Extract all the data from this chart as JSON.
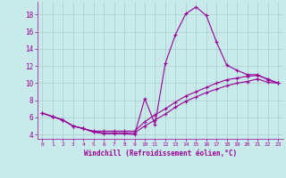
{
  "xlabel": "Windchill (Refroidissement éolien,°C)",
  "bg_color": "#c8eaea",
  "grid_color": "#aacccc",
  "line_color": "#990099",
  "xlim": [
    -0.5,
    23.5
  ],
  "ylim": [
    3.5,
    19.5
  ],
  "yticks": [
    4,
    6,
    8,
    10,
    12,
    14,
    16,
    18
  ],
  "xticks": [
    0,
    1,
    2,
    3,
    4,
    5,
    6,
    7,
    8,
    9,
    10,
    11,
    12,
    13,
    14,
    15,
    16,
    17,
    18,
    19,
    20,
    21,
    22,
    23
  ],
  "line1_x": [
    0,
    1,
    2,
    3,
    4,
    5,
    6,
    7,
    8,
    9,
    10,
    11,
    12,
    13,
    14,
    15,
    16,
    17,
    18,
    19,
    20,
    21,
    22,
    23
  ],
  "line1_y": [
    6.5,
    6.1,
    5.7,
    5.0,
    4.7,
    4.3,
    4.1,
    4.1,
    4.1,
    4.0,
    8.2,
    5.2,
    12.3,
    15.7,
    18.1,
    18.9,
    17.9,
    14.8,
    12.1,
    11.5,
    11.0,
    11.0,
    10.4,
    10.0
  ],
  "line2_x": [
    0,
    1,
    2,
    3,
    4,
    5,
    6,
    7,
    8,
    9,
    10,
    11,
    12,
    13,
    14,
    15,
    16,
    17,
    18,
    19,
    20,
    21,
    22,
    23
  ],
  "line2_y": [
    6.5,
    6.1,
    5.7,
    5.0,
    4.7,
    4.4,
    4.4,
    4.4,
    4.4,
    4.4,
    5.5,
    6.3,
    7.0,
    7.8,
    8.5,
    9.0,
    9.5,
    10.0,
    10.4,
    10.6,
    10.8,
    10.9,
    10.5,
    10.0
  ],
  "line3_x": [
    0,
    1,
    2,
    3,
    4,
    5,
    6,
    7,
    8,
    9,
    10,
    11,
    12,
    13,
    14,
    15,
    16,
    17,
    18,
    19,
    20,
    21,
    22,
    23
  ],
  "line3_y": [
    6.5,
    6.1,
    5.7,
    5.0,
    4.7,
    4.3,
    4.2,
    4.2,
    4.2,
    4.2,
    5.0,
    5.7,
    6.4,
    7.2,
    7.9,
    8.4,
    8.9,
    9.3,
    9.7,
    10.0,
    10.2,
    10.5,
    10.1,
    10.0
  ]
}
